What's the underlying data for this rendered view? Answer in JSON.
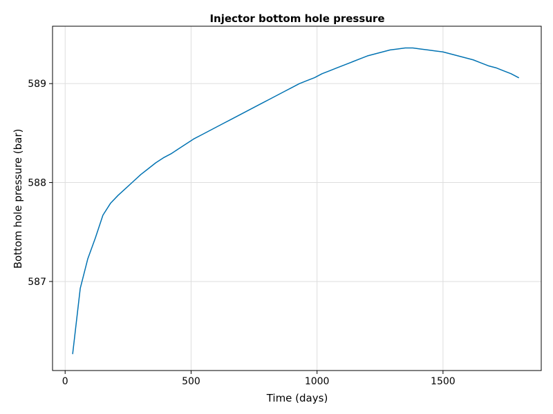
{
  "chart_data": {
    "type": "line",
    "title": "Injector bottom hole pressure",
    "xlabel": "Time (days)",
    "ylabel": "Bottom hole pressure (bar)",
    "xlim": [
      -50,
      1890
    ],
    "ylim": [
      586.1,
      589.58
    ],
    "xticks": [
      0,
      500,
      1000,
      1500
    ],
    "yticks": [
      587,
      588,
      589
    ],
    "grid": true,
    "legend": "none",
    "series": [
      {
        "color": "#0072b2",
        "x": [
          30,
          60,
          90,
          120,
          150,
          180,
          210,
          240,
          270,
          300,
          330,
          360,
          390,
          420,
          450,
          480,
          510,
          540,
          570,
          600,
          630,
          660,
          690,
          720,
          750,
          780,
          810,
          840,
          870,
          900,
          930,
          960,
          990,
          1020,
          1050,
          1080,
          1110,
          1140,
          1170,
          1200,
          1230,
          1260,
          1290,
          1320,
          1350,
          1380,
          1410,
          1440,
          1470,
          1500,
          1530,
          1560,
          1590,
          1620,
          1650,
          1680,
          1710,
          1740,
          1770,
          1800
        ],
        "y": [
          586.27,
          586.93,
          587.23,
          587.44,
          587.67,
          587.79,
          587.87,
          587.94,
          588.01,
          588.08,
          588.14,
          588.2,
          588.25,
          588.29,
          588.34,
          588.39,
          588.44,
          588.48,
          588.52,
          588.56,
          588.6,
          588.64,
          588.68,
          588.72,
          588.76,
          588.8,
          588.84,
          588.88,
          588.92,
          588.96,
          589.0,
          589.03,
          589.06,
          589.1,
          589.13,
          589.16,
          589.19,
          589.22,
          589.25,
          589.28,
          589.3,
          589.32,
          589.34,
          589.35,
          589.36,
          589.36,
          589.35,
          589.34,
          589.33,
          589.32,
          589.3,
          589.28,
          589.26,
          589.24,
          589.21,
          589.18,
          589.16,
          589.13,
          589.1,
          589.06
        ]
      }
    ]
  }
}
